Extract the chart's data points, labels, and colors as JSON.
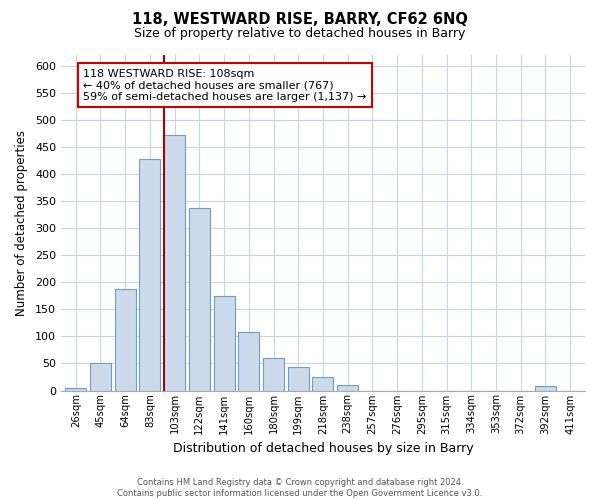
{
  "title": "118, WESTWARD RISE, BARRY, CF62 6NQ",
  "subtitle": "Size of property relative to detached houses in Barry",
  "xlabel": "Distribution of detached houses by size in Barry",
  "ylabel": "Number of detached properties",
  "bar_labels": [
    "26sqm",
    "45sqm",
    "64sqm",
    "83sqm",
    "103sqm",
    "122sqm",
    "141sqm",
    "160sqm",
    "180sqm",
    "199sqm",
    "218sqm",
    "238sqm",
    "257sqm",
    "276sqm",
    "295sqm",
    "315sqm",
    "334sqm",
    "353sqm",
    "372sqm",
    "392sqm",
    "411sqm"
  ],
  "bar_values": [
    5,
    50,
    187,
    428,
    473,
    337,
    174,
    108,
    61,
    44,
    25,
    11,
    0,
    0,
    0,
    0,
    0,
    0,
    0,
    8,
    0
  ],
  "bar_color": "#ccdaeb",
  "bar_edge_color": "#6b9ec8",
  "highlight_bar_index": 4,
  "highlight_line_color": "#aa0000",
  "annotation_line1": "118 WESTWARD RISE: 108sqm",
  "annotation_line2": "← 40% of detached houses are smaller (767)",
  "annotation_line3": "59% of semi-detached houses are larger (1,137) →",
  "annotation_box_edge": "#cc0000",
  "ylim": [
    0,
    620
  ],
  "yticks": [
    0,
    50,
    100,
    150,
    200,
    250,
    300,
    350,
    400,
    450,
    500,
    550,
    600
  ],
  "footer_line1": "Contains HM Land Registry data © Crown copyright and database right 2024.",
  "footer_line2": "Contains public sector information licensed under the Open Government Licence v3.0.",
  "background_color": "#ffffff",
  "grid_color": "#c8d4e0"
}
